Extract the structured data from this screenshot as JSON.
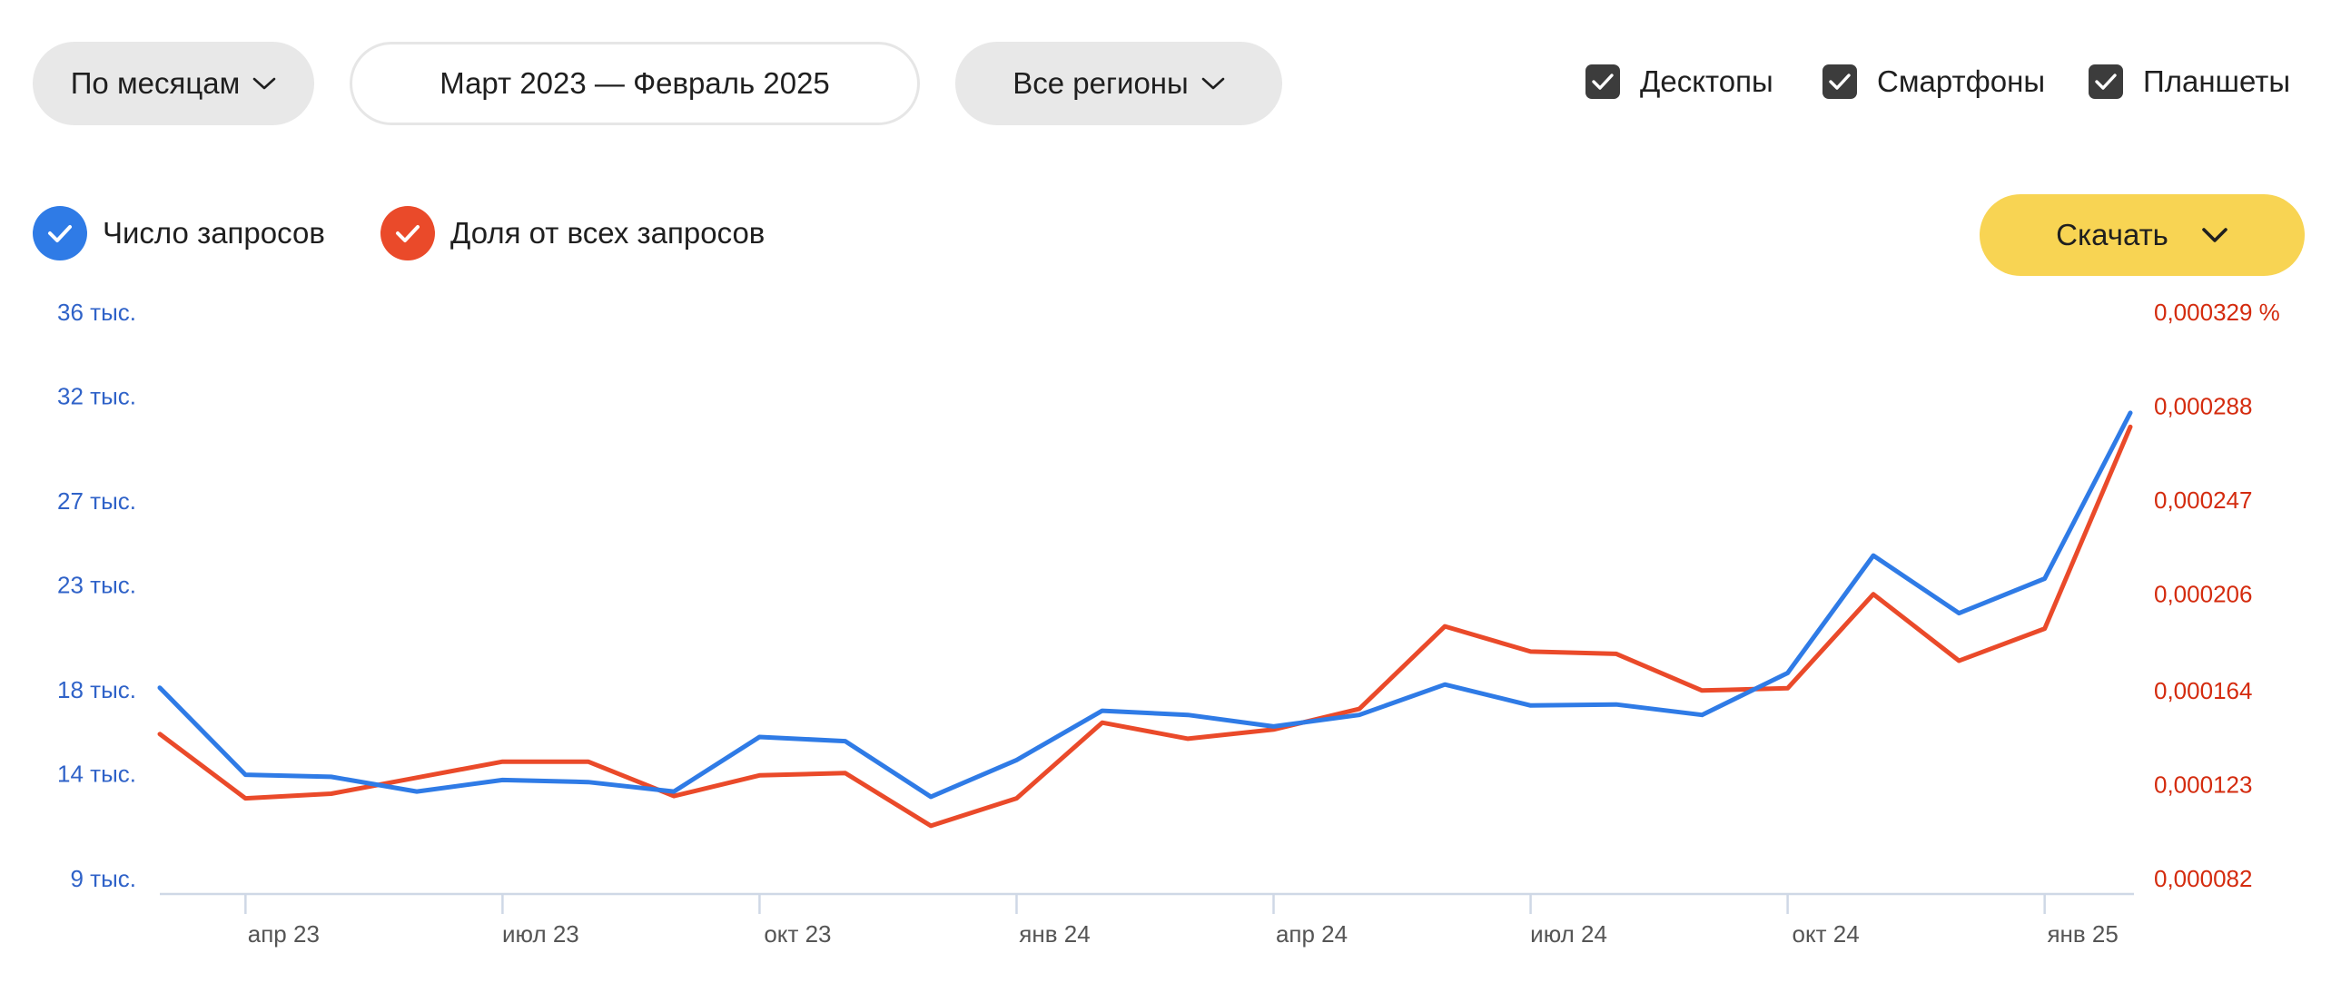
{
  "controls": {
    "period": {
      "label": "По месяцам"
    },
    "range": {
      "label": "Март 2023 — Февраль 2025"
    },
    "region": {
      "label": "Все регионы"
    },
    "devices": [
      {
        "label": "Десктопы",
        "checked": true
      },
      {
        "label": "Смартфоны",
        "checked": true
      },
      {
        "label": "Планшеты",
        "checked": true
      }
    ],
    "download": {
      "label": "Скачать"
    }
  },
  "legend": [
    {
      "label": "Число запросов",
      "color": "#2f7be6",
      "checked": true
    },
    {
      "label": "Доля от всех запросов",
      "color": "#ea4a2a",
      "checked": true
    }
  ],
  "colors": {
    "count_line": "#2f7be6",
    "share_line": "#ea4a2a",
    "left_axis_text": "#2f62c8",
    "right_axis_text": "#d42b0e",
    "download_bg": "#f8d453"
  },
  "chart_data": {
    "type": "line",
    "x": [
      "2023-03",
      "2023-04",
      "2023-05",
      "2023-06",
      "2023-07",
      "2023-08",
      "2023-09",
      "2023-10",
      "2023-11",
      "2023-12",
      "2024-01",
      "2024-02",
      "2024-03",
      "2024-04",
      "2024-05",
      "2024-06",
      "2024-07",
      "2024-08",
      "2024-09",
      "2024-10",
      "2024-11",
      "2024-12",
      "2025-01",
      "2025-02"
    ],
    "x_tick_labels": [
      "апр 23",
      "июл 23",
      "окт 23",
      "янв 24",
      "апр 24",
      "июл 24",
      "окт 24",
      "янв 25"
    ],
    "x_tick_positions": [
      "2023-04",
      "2023-07",
      "2023-10",
      "2024-01",
      "2024-04",
      "2024-07",
      "2024-10",
      "2025-01"
    ],
    "series": [
      {
        "name": "Число запросов",
        "axis": "left",
        "values": [
          18100,
          13950,
          13850,
          13150,
          13700,
          13600,
          13150,
          15750,
          15550,
          12900,
          14650,
          17000,
          16800,
          16250,
          16800,
          18250,
          17250,
          17300,
          16800,
          18800,
          24400,
          21650,
          23300,
          31200
        ]
      },
      {
        "name": "Доля от всех запросов",
        "axis": "right",
        "values": [
          0.000145,
          0.000117,
          0.000119,
          0.000126,
          0.000133,
          0.000133,
          0.000118,
          0.000127,
          0.000128,
          0.000105,
          0.000117,
          0.00015,
          0.000143,
          0.000147,
          0.000156,
          0.000192,
          0.000181,
          0.00018,
          0.000164,
          0.000165,
          0.000206,
          0.000177,
          0.000191,
          0.000279
        ]
      }
    ],
    "y_left": {
      "ticks": [
        36000,
        32000,
        27000,
        23000,
        18000,
        14000,
        9000
      ],
      "tick_labels": [
        "36 тыс.",
        "32 тыс.",
        "27 тыс.",
        "23 тыс.",
        "18 тыс.",
        "14 тыс.",
        "9 тыс."
      ]
    },
    "y_right": {
      "ticks": [
        0.000329,
        0.000288,
        0.000247,
        0.000206,
        0.000164,
        0.000123,
        8.2e-05
      ],
      "tick_labels": [
        "0,000329 %",
        "0,000288",
        "0,000247",
        "0,000206",
        "0,000164",
        "0,000123",
        "0,000082"
      ]
    },
    "grid": false
  }
}
